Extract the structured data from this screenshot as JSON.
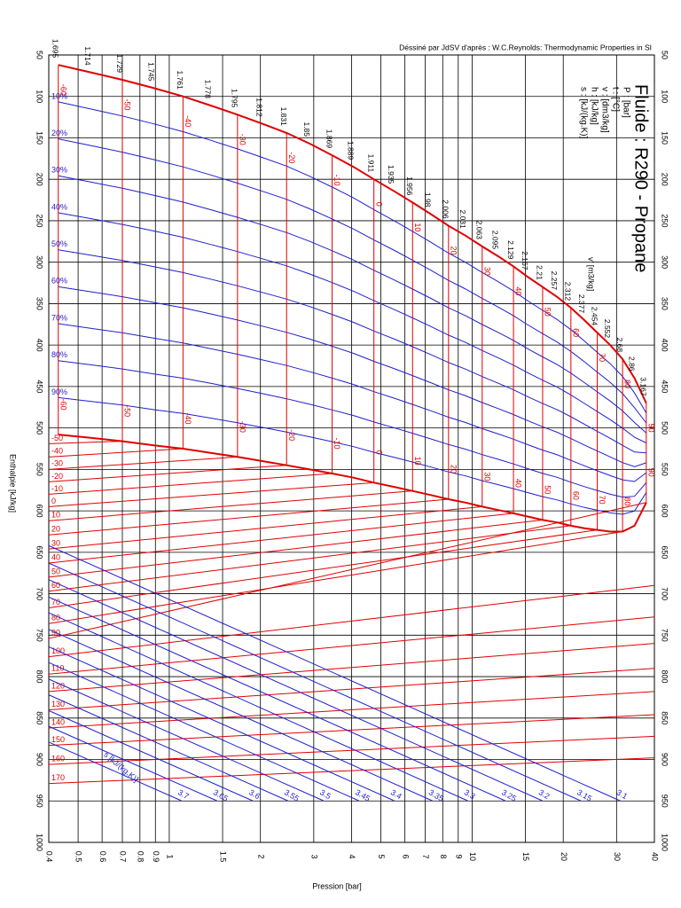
{
  "chart_data": {
    "type": "line",
    "title": "Fluide : R290 - Propane",
    "credit": "Déssiné par JdSV d'après : W.C.Reynolds: Thermodynamic Properties in SI",
    "units": [
      "P : [bar]",
      "t : [°C]",
      "v : [dm3/kg]",
      "h : [kJ/kg]",
      "s : [kJ/(kg.K)]"
    ],
    "v_label": "v' [m3/kg]",
    "s_label": "s [kJ/(kg.K)]",
    "x_label": "Pression [bar]",
    "y_label": "Enthalpie [kJ/kg]",
    "xlog": true,
    "xlim": [
      0.4,
      40
    ],
    "ylim": [
      50,
      1000
    ],
    "xticks": [
      0.4,
      0.5,
      0.6,
      0.7,
      0.8,
      0.9,
      1,
      1.5,
      2,
      3,
      4,
      5,
      6,
      7,
      8,
      9,
      10,
      15,
      20,
      30,
      40
    ],
    "yticks": [
      50,
      100,
      150,
      200,
      250,
      300,
      350,
      400,
      450,
      500,
      550,
      600,
      650,
      700,
      750,
      800,
      850,
      900,
      950,
      1000
    ],
    "grid": true,
    "saturation": {
      "color": "#e00000",
      "t": [
        -60,
        -55,
        -50,
        -45,
        -40,
        -35,
        -30,
        -25,
        -20,
        -15,
        -10,
        -5,
        0,
        5,
        10,
        15,
        20,
        25,
        30,
        35,
        40,
        45,
        50,
        55,
        60,
        65,
        70,
        75,
        80,
        85,
        90
      ],
      "x": [
        0.43,
        0.55,
        0.7,
        0.89,
        1.11,
        1.37,
        1.68,
        2.03,
        2.44,
        2.91,
        3.45,
        4.06,
        4.74,
        5.51,
        6.36,
        7.31,
        8.36,
        9.52,
        10.8,
        12.2,
        13.7,
        15.3,
        17.1,
        19.1,
        21.2,
        23.5,
        25.9,
        28.6,
        31.4,
        34.4,
        37.6
      ],
      "liquid": [
        62,
        71,
        80,
        90,
        100,
        111,
        122,
        133,
        144,
        157,
        171,
        185,
        200,
        214,
        228,
        242,
        256,
        268,
        281,
        293,
        305,
        318,
        330,
        342,
        355,
        370,
        385,
        400,
        417,
        440,
        470
      ],
      "vapor": [
        508,
        512,
        516,
        521,
        525,
        530,
        535,
        540,
        545,
        550,
        555,
        560,
        566,
        571,
        576,
        581,
        586,
        590,
        595,
        599,
        603,
        607,
        611,
        614,
        618,
        621,
        623,
        625,
        625,
        618,
        590
      ],
      "s_labels": [
        1.695,
        1.714,
        1.729,
        1.745,
        1.761,
        1.778,
        1.795,
        1.812,
        1.831,
        1.85,
        1.869,
        1.889,
        1.911,
        1.935,
        1.956,
        1.98,
        2.006,
        2.031,
        2.063,
        2.095,
        2.129,
        2.167,
        2.21,
        2.257,
        2.312,
        2.377,
        2.454,
        2.552,
        2.68,
        2.86,
        3.167
      ]
    },
    "quality": {
      "color": "#1f1fd0",
      "values": [
        {
          "value": 10,
          "label": "10%"
        },
        {
          "value": 20,
          "label": "20%"
        },
        {
          "value": 30,
          "label": "30%"
        },
        {
          "value": 40,
          "label": "40%"
        },
        {
          "value": 50,
          "label": "50%"
        },
        {
          "value": 60,
          "label": "60%"
        },
        {
          "value": 70,
          "label": "70%"
        },
        {
          "value": 80,
          "label": "80%"
        },
        {
          "value": 90,
          "label": "90%"
        }
      ]
    },
    "isotherms": {
      "color": "#e00000",
      "t": [
        -50,
        -40,
        -30,
        -20,
        -10,
        0,
        10,
        20,
        30,
        40,
        50,
        60,
        70,
        80,
        90,
        100,
        110,
        120,
        130,
        140,
        150,
        160,
        170
      ],
      "h_low": [
        519,
        535,
        550,
        565,
        580,
        595,
        612,
        629,
        646,
        663,
        680,
        697,
        717,
        736,
        754,
        776,
        797,
        818,
        840,
        862,
        883,
        906,
        929
      ],
      "h_high": [
        null,
        null,
        null,
        null,
        null,
        null,
        null,
        null,
        null,
        null,
        null,
        null,
        null,
        null,
        null,
        690,
        728,
        760,
        790,
        818,
        846,
        872,
        898
      ]
    },
    "isentropes": {
      "color": "#1f1fd0",
      "s": [
        3.7,
        3.65,
        3.6,
        3.55,
        3.5,
        3.45,
        3.4,
        3.35,
        3.3,
        3.25,
        3.2,
        3.15,
        3.1
      ],
      "h_left": [
        879,
        860,
        841,
        822,
        803,
        783,
        764,
        743,
        723,
        704,
        683,
        663,
        642
      ],
      "x_end": [
        1.1,
        1.44,
        1.89,
        2.47,
        3.24,
        4.24,
        5.55,
        7.41,
        9.7,
        12.9,
        17.1,
        22.9,
        30.9
      ],
      "h_end": [
        950,
        950,
        950,
        950,
        950,
        950,
        950,
        950,
        950,
        950,
        950,
        950,
        950
      ]
    }
  }
}
